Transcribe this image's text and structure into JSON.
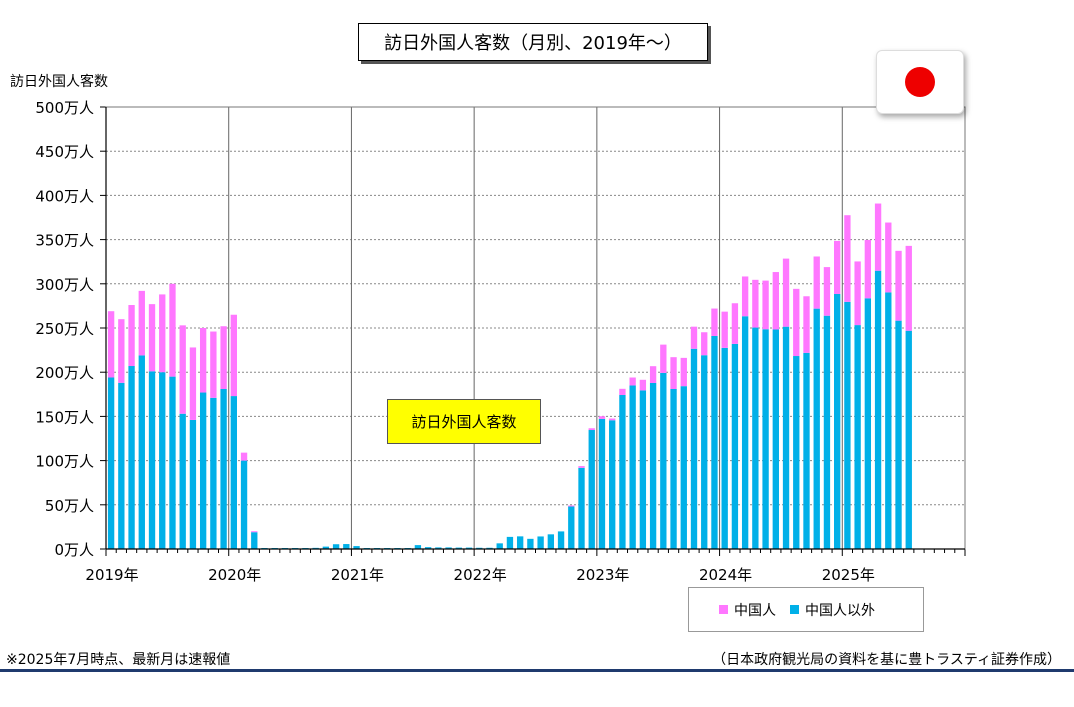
{
  "title": "訪日外国人客数（月別、2019年～）",
  "ylabel": "訪日外国人客数",
  "annotation": "訪日外国人客数",
  "footnote": "※2025年7月時点、最新月は速報値",
  "source": "（日本政府観光局の資料を基に豊トラスティ証券作成）",
  "flag": "japan-flag",
  "colors": {
    "chinese": "#ff77ff",
    "non_chinese": "#00b0e8",
    "annotation_bg": "#ffff00",
    "flag_red": "#ee0000",
    "footer_line": "#1f3a6e"
  },
  "chart_data": {
    "type": "bar",
    "stacked": true,
    "title": "訪日外国人客数（月別、2019年～）",
    "ylabel": "訪日外国人客数",
    "ylim": [
      0,
      500
    ],
    "yticks": [
      "0万人",
      "50万人",
      "100万人",
      "150万人",
      "200万人",
      "250万人",
      "300万人",
      "350万人",
      "400万人",
      "450万人",
      "500万人"
    ],
    "xticks": [
      "2019年",
      "2020年",
      "2021年",
      "2022年",
      "2023年",
      "2024年",
      "2025年"
    ],
    "grid": true,
    "legend_position": "bottom-right",
    "months_per_year": 12,
    "series": [
      {
        "name": "中国人以外",
        "values": [
          194,
          188,
          207,
          219,
          201,
          200,
          195,
          153,
          146,
          177,
          171,
          181,
          173,
          100,
          19,
          0.3,
          0.2,
          0.3,
          0.4,
          0.7,
          1.3,
          2.7,
          5.4,
          5.6,
          3.3,
          0.6,
          1.1,
          1.0,
          0.7,
          0.9,
          4.4,
          2.1,
          1.8,
          1.8,
          1.6,
          1.6,
          1.4,
          1.4,
          6.4,
          13.7,
          14.3,
          11.5,
          14.2,
          16.6,
          19.9,
          48.1,
          91.8,
          134.6,
          147.2,
          145.6,
          174.2,
          185.0,
          179.4,
          187.8,
          199.2,
          181.0,
          184.2,
          226.5,
          219.2,
          241.0,
          227.5,
          232.0,
          263.3,
          250.5,
          248.6,
          248.3,
          251.5,
          218.3,
          221.9,
          271.9,
          263.9,
          288.5,
          279.6,
          253.3,
          283.6,
          314.8,
          290.3,
          258.3,
          246.9
        ],
        "color": "#00b0e8"
      },
      {
        "name": "中国人",
        "values": [
          75,
          72,
          69,
          73,
          76,
          88,
          105,
          100,
          82,
          73,
          75,
          71,
          92,
          9,
          1,
          0,
          0,
          0,
          0,
          0,
          0,
          0,
          0,
          0,
          0,
          0,
          0,
          0,
          0,
          0,
          0,
          0,
          0,
          0,
          0,
          0,
          0,
          0,
          0,
          0,
          0,
          0,
          0,
          0,
          0,
          1,
          2,
          2,
          3,
          2,
          7,
          9,
          12,
          19,
          32,
          36,
          32,
          25,
          26,
          31,
          41,
          46,
          45,
          54,
          55,
          65,
          77,
          76,
          64,
          59,
          55,
          60,
          98,
          72,
          66,
          76,
          79,
          79,
          96
        ]
      }
    ]
  }
}
